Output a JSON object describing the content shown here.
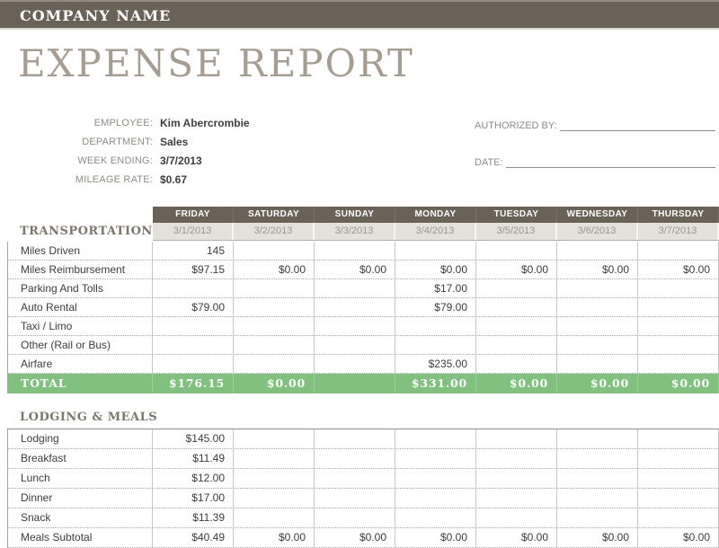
{
  "header": {
    "company_name": "COMPANY NAME",
    "title": "EXPENSE REPORT"
  },
  "info": {
    "fields": [
      {
        "label": "EMPLOYEE:",
        "value": "Kim Abercrombie"
      },
      {
        "label": "DEPARTMENT:",
        "value": "Sales"
      },
      {
        "label": "WEEK ENDING:",
        "value": "3/7/2013"
      },
      {
        "label": "MILEAGE RATE:",
        "value": "$0.67"
      }
    ]
  },
  "signatures": [
    {
      "label": "AUTHORIZED BY:"
    },
    {
      "label": "DATE:"
    }
  ],
  "colors": {
    "header_bar": "#6a6157",
    "total_row_green": "#81c07e",
    "date_row_bg": "#e4e1dd",
    "title_gray": "#a69d92"
  },
  "table": {
    "day_headers": [
      "FRIDAY",
      "SATURDAY",
      "SUNDAY",
      "MONDAY",
      "TUESDAY",
      "WEDNESDAY",
      "THURSDAY"
    ],
    "dates": [
      "3/1/2013",
      "3/2/2013",
      "3/3/2013",
      "3/4/2013",
      "3/5/2013",
      "3/6/2013",
      "3/7/2013"
    ],
    "sections": [
      {
        "title": "TRANSPORTATION",
        "rows": [
          {
            "label": "Miles Driven",
            "values": [
              "145",
              "",
              "",
              "",
              "",
              "",
              ""
            ]
          },
          {
            "label": "Miles Reimbursement",
            "values": [
              "$97.15",
              "$0.00",
              "$0.00",
              "$0.00",
              "$0.00",
              "$0.00",
              "$0.00"
            ]
          },
          {
            "label": "Parking And Tolls",
            "values": [
              "",
              "",
              "",
              "$17.00",
              "",
              "",
              ""
            ]
          },
          {
            "label": "Auto Rental",
            "values": [
              "$79.00",
              "",
              "",
              "$79.00",
              "",
              "",
              ""
            ]
          },
          {
            "label": "Taxi / Limo",
            "values": [
              "",
              "",
              "",
              "",
              "",
              "",
              ""
            ]
          },
          {
            "label": "Other (Rail or Bus)",
            "values": [
              "",
              "",
              "",
              "",
              "",
              "",
              ""
            ]
          },
          {
            "label": "Airfare",
            "values": [
              "",
              "",
              "",
              "$235.00",
              "",
              "",
              ""
            ]
          }
        ],
        "total": {
          "label": "TOTAL",
          "values": [
            "$176.15",
            "$0.00",
            "",
            "$331.00",
            "$0.00",
            "$0.00",
            "$0.00"
          ]
        }
      },
      {
        "title": "LODGING & MEALS",
        "rows": [
          {
            "label": "Lodging",
            "values": [
              "$145.00",
              "",
              "",
              "",
              "",
              "",
              ""
            ]
          },
          {
            "label": "Breakfast",
            "values": [
              "$11.49",
              "",
              "",
              "",
              "",
              "",
              ""
            ]
          },
          {
            "label": "Lunch",
            "values": [
              "$12.00",
              "",
              "",
              "",
              "",
              "",
              ""
            ]
          },
          {
            "label": "Dinner",
            "values": [
              "$17.00",
              "",
              "",
              "",
              "",
              "",
              ""
            ]
          },
          {
            "label": "Snack",
            "values": [
              "$11.39",
              "",
              "",
              "",
              "",
              "",
              ""
            ]
          },
          {
            "label": "Meals Subtotal",
            "values": [
              "$40.49",
              "$0.00",
              "$0.00",
              "$0.00",
              "$0.00",
              "$0.00",
              "$0.00"
            ]
          }
        ]
      }
    ]
  }
}
